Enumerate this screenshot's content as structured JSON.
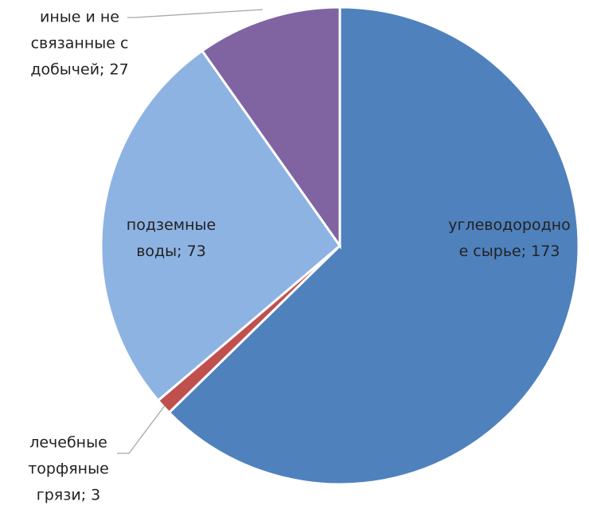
{
  "chart_data": {
    "type": "pie",
    "values": [
      173,
      3,
      73,
      27
    ],
    "value_labels": [
      "углеводородное сырье; 173",
      "лечебные торфяные грязи; 3",
      "подземные воды; 73",
      "иные и не связанные с добычей; 27"
    ],
    "colors": [
      "#4f81bd",
      "#c0504d",
      "#8db3e2",
      "#8064a2"
    ],
    "start_angle": 0,
    "direction": "clockwise"
  }
}
